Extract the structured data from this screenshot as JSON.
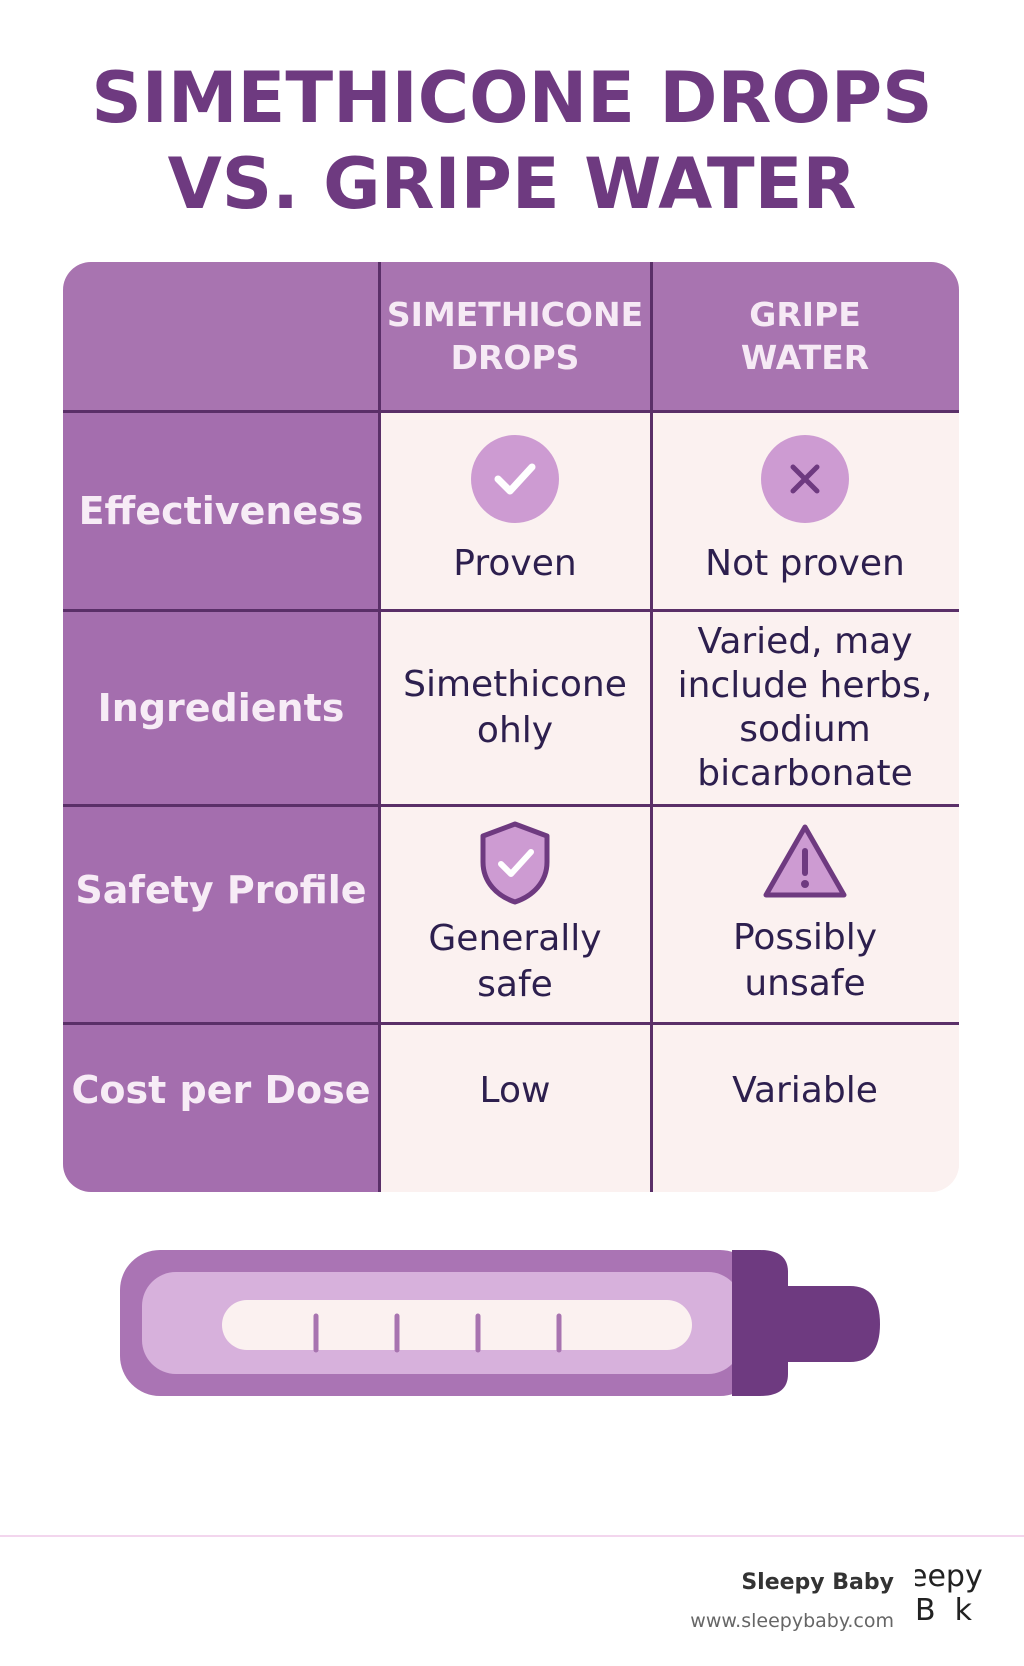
{
  "title": {
    "line1": "SIMETHICONE DROPS",
    "line2": "VS. GRIPE WATER"
  },
  "table": {
    "headers": {
      "col1_line1": "SIMETHICONE",
      "col1_line2": "DROPS",
      "col2_line1": "GRIPE",
      "col2_line2": "WATER"
    },
    "rows": [
      {
        "label": "Effectiveness",
        "simethicone": "Proven",
        "simethicone_icon": "check-circle-icon",
        "gripe": "Not proven",
        "gripe_icon": "x-circle-icon"
      },
      {
        "label": "Ingredients",
        "simethicone_line1": "Simethicone",
        "simethicone_line2": "ohly",
        "gripe_line1": "Varied, may",
        "gripe_line2": "include herbs,",
        "gripe_line3": "sodium",
        "gripe_line4": "bicarbonate"
      },
      {
        "label": "Safety Profile",
        "simethicone_line1": "Generally",
        "simethicone_line2": "safe",
        "simethicone_icon": "shield-check-icon",
        "gripe_line1": "Possibly",
        "gripe_line2": "unsafe",
        "gripe_icon": "warning-triangle-icon"
      },
      {
        "label": "Cost per Dose",
        "simethicone": "Low",
        "gripe": "Variable"
      }
    ]
  },
  "footer": {
    "brand": "Sleepy Baby",
    "url": "www.sleepybaby.com",
    "logo_top": "eepy",
    "logo_bottom": "B  k"
  },
  "colors": {
    "title": "#6e3a80",
    "header_bg": "#a874b0",
    "label_bg": "#a46eae",
    "cell_bg": "#fbf1f0",
    "gridline": "#5a2f68",
    "icon_fill": "#cd9bd2",
    "icon_mark": "#6e3a80",
    "value_text": "#2d1f4e"
  }
}
